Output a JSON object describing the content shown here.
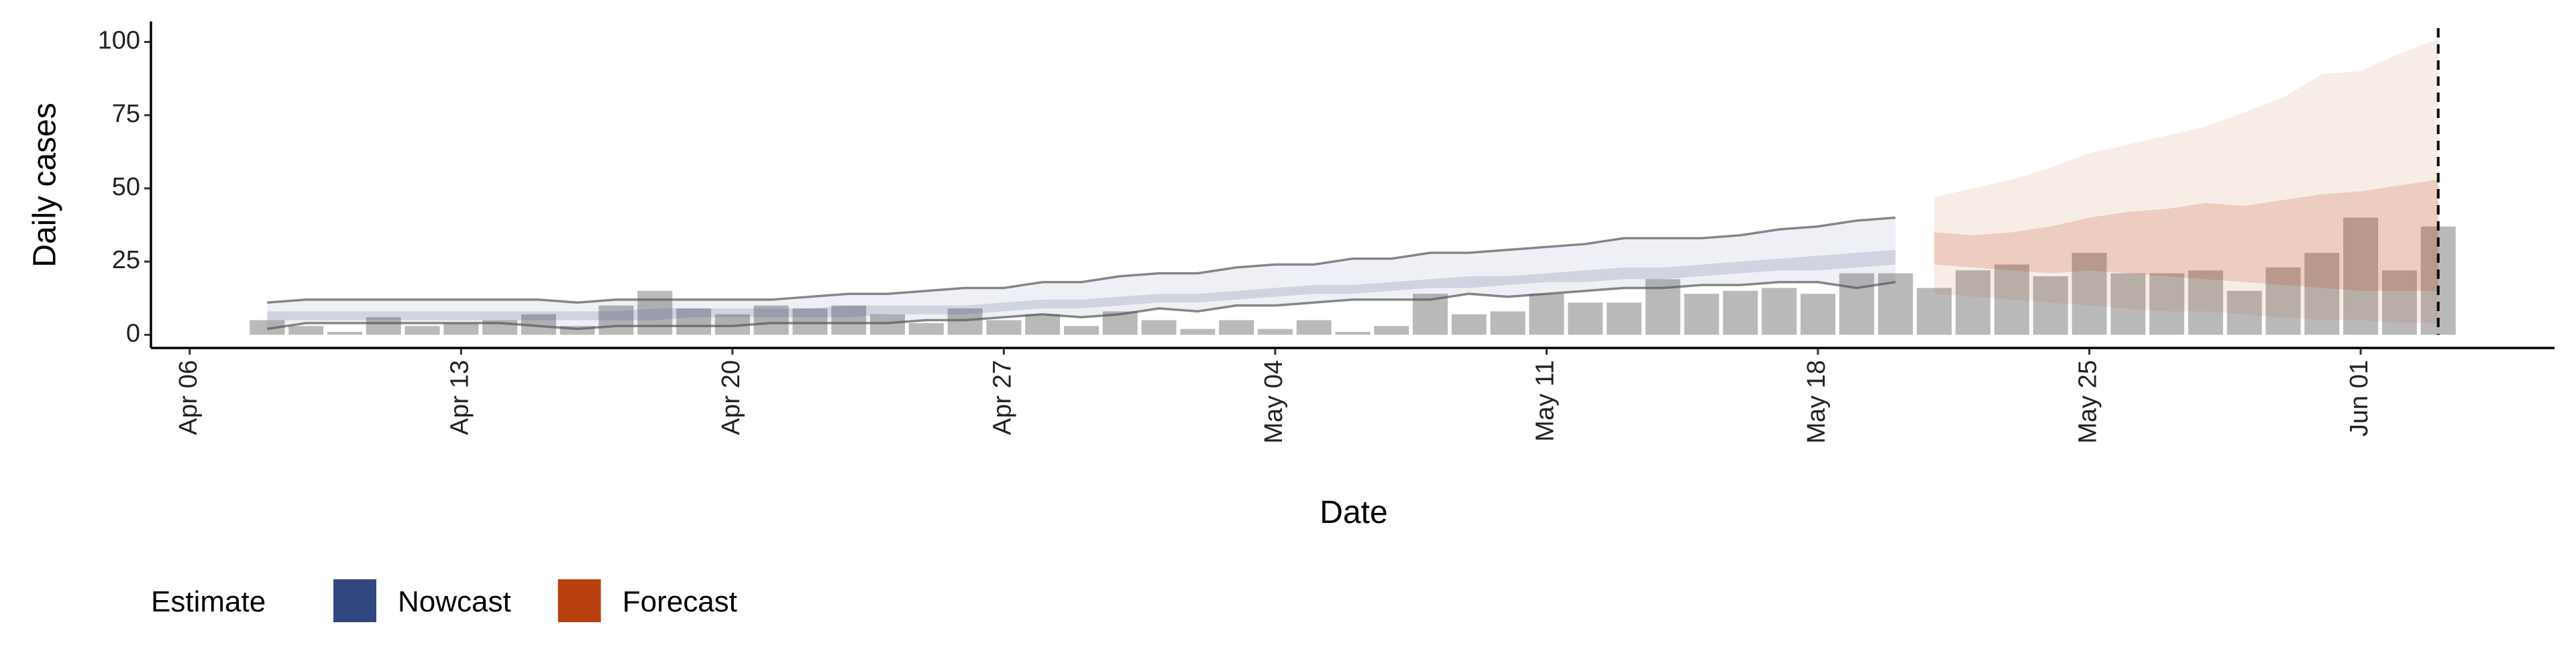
{
  "chart_data": {
    "type": "band",
    "x_label": "Date",
    "y_label": "Daily cases",
    "xlim": [
      "Apr 05",
      "Jun 06"
    ],
    "xticks": [
      "Apr 06",
      "Apr 13",
      "Apr 20",
      "Apr 27",
      "May 04",
      "May 11",
      "May 18",
      "May 25",
      "Jun 01"
    ],
    "ylim": [
      -4.5,
      107
    ],
    "yticks": [
      0,
      25,
      50,
      75,
      100
    ],
    "vline": "Jun 03",
    "legend": {
      "title": "Estimate",
      "position": "bottom"
    },
    "bars": {
      "color": "#a8a8a8",
      "x": [
        "Apr 08",
        "Apr 09",
        "Apr 10",
        "Apr 11",
        "Apr 12",
        "Apr 13",
        "Apr 14",
        "Apr 15",
        "Apr 16",
        "Apr 17",
        "Apr 18",
        "Apr 19",
        "Apr 20",
        "Apr 21",
        "Apr 22",
        "Apr 23",
        "Apr 24",
        "Apr 25",
        "Apr 26",
        "Apr 27",
        "Apr 28",
        "Apr 29",
        "Apr 30",
        "May 01",
        "May 02",
        "May 03",
        "May 04",
        "May 05",
        "May 06",
        "May 07",
        "May 08",
        "May 09",
        "May 10",
        "May 11",
        "May 12",
        "May 13",
        "May 14",
        "May 15",
        "May 16",
        "May 17",
        "May 18",
        "May 19",
        "May 20",
        "May 21",
        "May 22",
        "May 23",
        "May 24",
        "May 25",
        "May 26",
        "May 27",
        "May 28",
        "May 29",
        "May 30",
        "May 31",
        "Jun 01",
        "Jun 02",
        "Jun 03"
      ],
      "values": [
        5,
        3,
        1,
        6,
        3,
        4,
        5,
        7,
        3,
        10,
        15,
        9,
        7,
        10,
        9,
        10,
        7,
        4,
        9,
        5,
        7,
        3,
        8,
        5,
        2,
        5,
        2,
        5,
        1,
        3,
        14,
        7,
        8,
        14,
        11,
        11,
        19,
        14,
        15,
        16,
        14,
        21,
        21,
        16,
        22,
        24,
        20,
        28,
        21,
        21,
        22,
        15,
        23,
        28,
        40,
        22,
        37
      ]
    },
    "series": [
      {
        "name": "Nowcast",
        "color": "#32467f",
        "x": [
          "Apr 08",
          "Apr 09",
          "Apr 10",
          "Apr 11",
          "Apr 12",
          "Apr 13",
          "Apr 14",
          "Apr 15",
          "Apr 16",
          "Apr 17",
          "Apr 18",
          "Apr 19",
          "Apr 20",
          "Apr 21",
          "Apr 22",
          "Apr 23",
          "Apr 24",
          "Apr 25",
          "Apr 26",
          "Apr 27",
          "Apr 28",
          "Apr 29",
          "Apr 30",
          "May 01",
          "May 02",
          "May 03",
          "May 04",
          "May 05",
          "May 06",
          "May 07",
          "May 08",
          "May 09",
          "May 10",
          "May 11",
          "May 12",
          "May 13",
          "May 14",
          "May 15",
          "May 16",
          "May 17",
          "May 18",
          "May 19",
          "May 20"
        ],
        "upper_90": [
          11,
          12,
          12,
          12,
          12,
          12,
          12,
          12,
          11,
          12,
          12,
          12,
          12,
          12,
          13,
          14,
          14,
          15,
          16,
          16,
          18,
          18,
          20,
          21,
          21,
          23,
          24,
          24,
          26,
          26,
          28,
          28,
          29,
          30,
          31,
          33,
          33,
          33,
          34,
          36,
          37,
          39,
          40
        ],
        "lower_90": [
          2,
          4,
          4,
          4,
          4,
          4,
          4,
          3,
          2,
          3,
          3,
          3,
          3,
          4,
          4,
          4,
          4,
          5,
          5,
          6,
          7,
          6,
          7,
          9,
          8,
          10,
          10,
          11,
          12,
          12,
          12,
          14,
          13,
          14,
          15,
          16,
          16,
          17,
          17,
          18,
          18,
          16,
          18
        ],
        "upper_50": [
          8,
          8,
          8,
          8,
          8,
          8,
          8,
          8,
          8,
          8,
          9,
          9,
          9,
          9,
          9,
          10,
          10,
          10,
          10,
          11,
          12,
          12,
          13,
          14,
          14,
          15,
          16,
          17,
          17,
          18,
          19,
          20,
          20,
          21,
          22,
          23,
          23,
          24,
          25,
          26,
          27,
          28,
          29
        ],
        "lower_50": [
          5,
          5,
          5,
          5,
          5,
          5,
          5,
          5,
          5,
          5,
          5,
          6,
          6,
          6,
          6,
          6,
          7,
          7,
          7,
          8,
          9,
          9,
          10,
          11,
          11,
          12,
          13,
          14,
          14,
          15,
          16,
          16,
          17,
          18,
          18,
          19,
          19,
          20,
          21,
          22,
          22,
          23,
          24
        ]
      },
      {
        "name": "Forecast",
        "color": "#b8400f",
        "x": [
          "May 21",
          "May 22",
          "May 23",
          "May 24",
          "May 25",
          "May 26",
          "May 27",
          "May 28",
          "May 29",
          "May 30",
          "May 31",
          "Jun 01",
          "Jun 02",
          "Jun 03"
        ],
        "upper_90": [
          47,
          50,
          53,
          57,
          62,
          65,
          68,
          71,
          76,
          81,
          89,
          90,
          96,
          101
        ],
        "lower_90": [
          14,
          13,
          12,
          11,
          10,
          9,
          8,
          8,
          7,
          6,
          5,
          5,
          4,
          4
        ],
        "upper_50": [
          35,
          34,
          35,
          37,
          40,
          42,
          43,
          45,
          44,
          46,
          48,
          49,
          51,
          53
        ],
        "lower_50": [
          24,
          23,
          22,
          21,
          22,
          21,
          20,
          19,
          18,
          17,
          16,
          15,
          15,
          15
        ]
      }
    ]
  }
}
